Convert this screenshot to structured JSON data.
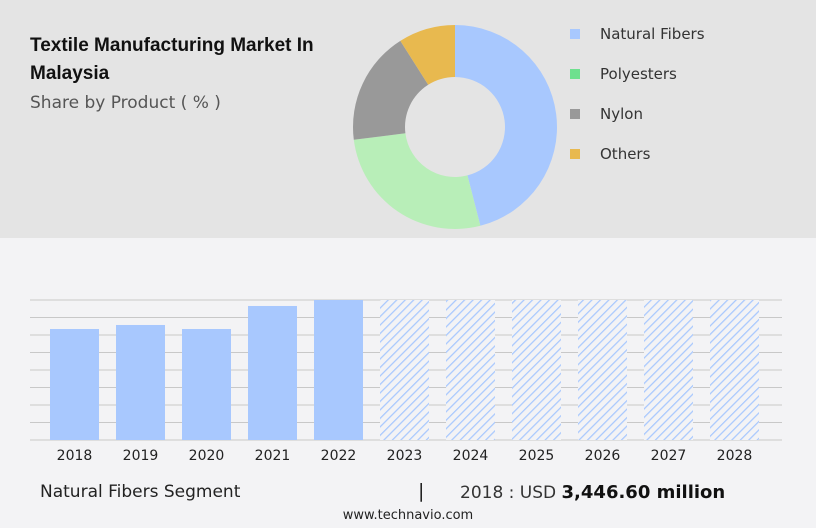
{
  "title": "Textile Manufacturing Market In Malaysia",
  "subtitle": "Share by Product ( % )",
  "colors": {
    "natural": "#a8c8fe",
    "poly": "#b8eeb8",
    "nylon": "#999999",
    "others": "#e8b94f",
    "legend_poly": "#6ee08e"
  },
  "chart_data": [
    {
      "type": "pie",
      "donut": true,
      "series": [
        {
          "name": "Natural Fibers",
          "value": 46,
          "color": "#a8c8fe",
          "legend_color": "#a8c8fe"
        },
        {
          "name": "Polyesters",
          "value": 27,
          "color": "#b8eeb8",
          "legend_color": "#6ee08e"
        },
        {
          "name": "Nylon",
          "value": 18,
          "color": "#999999",
          "legend_color": "#999999"
        },
        {
          "name": "Others",
          "value": 9,
          "color": "#e8b94f",
          "legend_color": "#e8b94f"
        }
      ],
      "legend": "right"
    },
    {
      "type": "bar",
      "grid": true,
      "categories": [
        "2018",
        "2019",
        "2020",
        "2021",
        "2022",
        "2023",
        "2024",
        "2025",
        "2026",
        "2027",
        "2028"
      ],
      "values": [
        3446.6,
        3571,
        3446.6,
        4161,
        4347,
        null,
        null,
        null,
        null,
        null,
        null
      ],
      "forecast_from": "2023",
      "color": "#a8c8fe"
    }
  ],
  "footer": {
    "segment": "Natural Fibers Segment",
    "separator": "|",
    "year_label": "2018 : USD",
    "value": "3,446.60 million"
  },
  "site": "www.technavio.com"
}
